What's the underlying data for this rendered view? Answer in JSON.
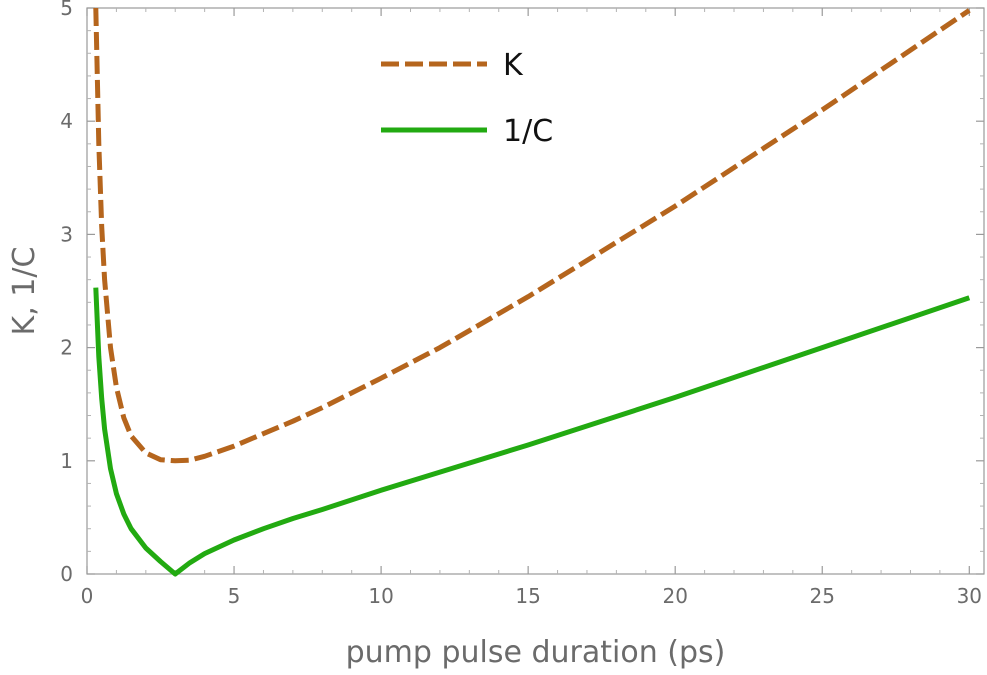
{
  "chart_data": {
    "type": "line",
    "title": "",
    "xlabel": "pump pulse duration (ps)",
    "ylabel": "K, 1/C",
    "xlim": [
      0,
      30.5
    ],
    "ylim": [
      0,
      5
    ],
    "x_ticks": [
      0,
      5,
      10,
      15,
      20,
      25,
      30
    ],
    "y_ticks": [
      0,
      1,
      2,
      3,
      4,
      5
    ],
    "x_tick_labels": [
      "0",
      "5",
      "10",
      "15",
      "20",
      "25",
      "30"
    ],
    "y_tick_labels": [
      "0",
      "1",
      "2",
      "3",
      "4",
      "5"
    ],
    "grid": false,
    "legend_position": "top-center",
    "series": [
      {
        "name": "K",
        "color": "#b5651d",
        "style": "dashed",
        "x": [
          0.3,
          0.4,
          0.5,
          0.6,
          0.8,
          1.0,
          1.25,
          1.5,
          2.0,
          2.5,
          3.0,
          3.5,
          4.0,
          5.0,
          6.0,
          7.0,
          8.0,
          10.0,
          12.0,
          15.0,
          20.0,
          25.0,
          30.0
        ],
        "values": [
          5.0,
          3.8,
          3.07,
          2.6,
          2.0,
          1.65,
          1.38,
          1.22,
          1.07,
          1.01,
          1.0,
          1.005,
          1.04,
          1.13,
          1.24,
          1.35,
          1.47,
          1.73,
          2.0,
          2.45,
          3.25,
          4.1,
          4.98
        ]
      },
      {
        "name": "1/C",
        "color": "#22aa11",
        "style": "solid",
        "x": [
          0.3,
          0.4,
          0.5,
          0.6,
          0.8,
          1.0,
          1.25,
          1.5,
          2.0,
          2.5,
          3.0,
          3.5,
          4.0,
          5.0,
          6.0,
          7.0,
          8.0,
          10.0,
          12.0,
          15.0,
          20.0,
          25.0,
          30.0
        ],
        "values": [
          2.53,
          1.92,
          1.55,
          1.28,
          0.93,
          0.71,
          0.53,
          0.4,
          0.23,
          0.11,
          0.0,
          0.1,
          0.18,
          0.3,
          0.4,
          0.49,
          0.57,
          0.74,
          0.9,
          1.14,
          1.56,
          2.0,
          2.44
        ]
      }
    ]
  }
}
